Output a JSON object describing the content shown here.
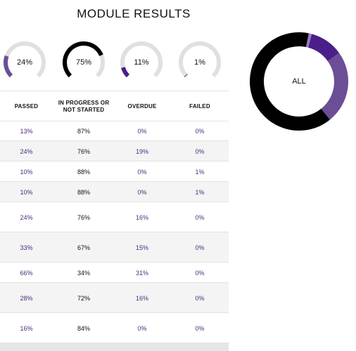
{
  "page": {
    "title": "MODULE RESULTS"
  },
  "gauges": [
    {
      "label": "24%",
      "value": 0.24,
      "color": "#6b4e96"
    },
    {
      "label": "75%",
      "value": 0.75,
      "color": "#000000"
    },
    {
      "label": "11%",
      "value": 0.11,
      "color": "#4a1f8a"
    },
    {
      "label": "1%",
      "value": 0.01,
      "color": "#8a6bb5"
    }
  ],
  "table": {
    "headers": [
      "PASSED",
      "IN PROGRESS OR NOT STARTED",
      "OVERDUE",
      "FAILED"
    ],
    "rows": [
      [
        "13%",
        "87%",
        "0%",
        "0%"
      ],
      [
        "24%",
        "76%",
        "19%",
        "0%"
      ],
      [
        "10%",
        "88%",
        "0%",
        "1%"
      ],
      [
        "10%",
        "88%",
        "0%",
        "1%"
      ],
      [
        "24%",
        "76%",
        "16%",
        "0%"
      ],
      [
        "33%",
        "67%",
        "15%",
        "0%"
      ],
      [
        "66%",
        "34%",
        "31%",
        "0%"
      ],
      [
        "28%",
        "72%",
        "16%",
        "0%"
      ],
      [
        "16%",
        "84%",
        "0%",
        "0%"
      ]
    ]
  },
  "donut": {
    "label": "ALL",
    "segments": [
      {
        "name": "Passed",
        "value": 0.24,
        "color": "#6b4e96"
      },
      {
        "name": "In progress",
        "value": 0.64,
        "color": "#000000"
      },
      {
        "name": "Overdue",
        "value": 0.11,
        "color": "#4a1f8a"
      },
      {
        "name": "Failed",
        "value": 0.01,
        "color": "#9a7cc4"
      }
    ]
  },
  "colors": {
    "track": "#e0e0e0",
    "accent": "#4a2a7a",
    "row_alt": "#f4f4f4"
  }
}
